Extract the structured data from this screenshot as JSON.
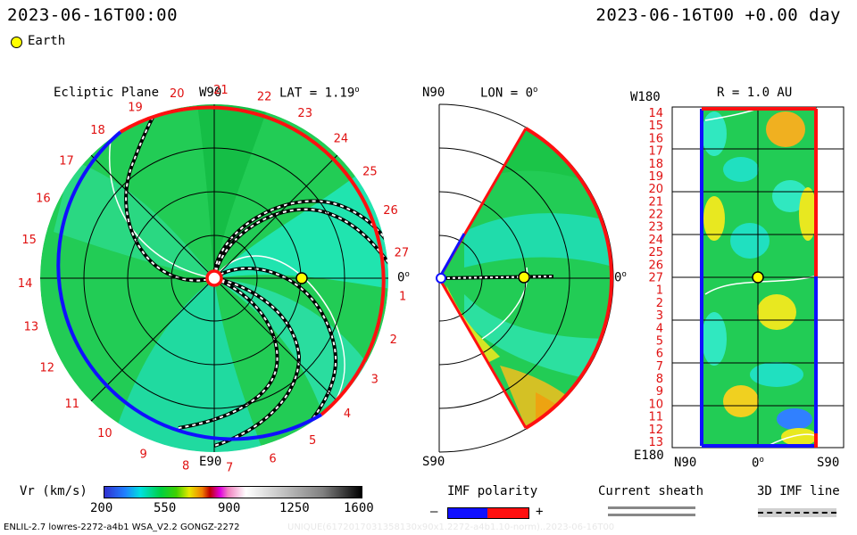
{
  "header": {
    "left_time": "2023-06-16T00:00",
    "right_time": "2023-06-16T00 +0.00 day",
    "earth_label": "Earth"
  },
  "panel_ecliptic": {
    "title": "Ecliptic Plane",
    "top_label": "W90",
    "bottom_label": "E90",
    "right_label": "0",
    "lat_label": "LAT = 1.19",
    "lat_sup": "o",
    "carrington_marks": [
      "19",
      "20",
      "21",
      "22",
      "23",
      "24",
      "25",
      "26",
      "27",
      "1",
      "2",
      "3",
      "4",
      "5",
      "6",
      "7",
      "8",
      "9",
      "10",
      "11",
      "12",
      "13",
      "14",
      "15",
      "16",
      "17",
      "18"
    ]
  },
  "panel_meridional": {
    "top_label": "N90",
    "bottom_label": "S90",
    "lon_label": "LON = 0",
    "lon_sup": "o",
    "right_label": "0",
    "right_sup": "o"
  },
  "panel_radial": {
    "title": "R = 1.0 AU",
    "top_left_label": "W180",
    "bottom_left_label": "E180",
    "x_labels": [
      "N90",
      "0",
      "S90"
    ],
    "x_sup": "o",
    "y_marks": [
      "14",
      "15",
      "16",
      "17",
      "18",
      "19",
      "20",
      "21",
      "22",
      "23",
      "24",
      "25",
      "26",
      "27",
      "1",
      "2",
      "3",
      "4",
      "5",
      "6",
      "7",
      "8",
      "9",
      "10",
      "11",
      "12",
      "13"
    ]
  },
  "legend": {
    "vr_label": "Vr (km/s)",
    "vr_ticks": [
      "200",
      "550",
      "900",
      "1250",
      "1600"
    ],
    "imf_title": "IMF polarity",
    "imf_minus": "–",
    "imf_plus": "+",
    "sheath_title": "Current sheath",
    "imf3d_title": "3D IMF line",
    "colors": {
      "neg": "#1010ff",
      "pos": "#ff1010",
      "sheath": "#888888"
    }
  },
  "footer": {
    "left": "ENLIL-2.7 lowres-2272-a4b1 WSA_V2.2 GONGZ-2272",
    "right": "UNIQUE(6172017031358130x90x1.2272-a4b1.10-norm)..2023-06-16T00"
  }
}
